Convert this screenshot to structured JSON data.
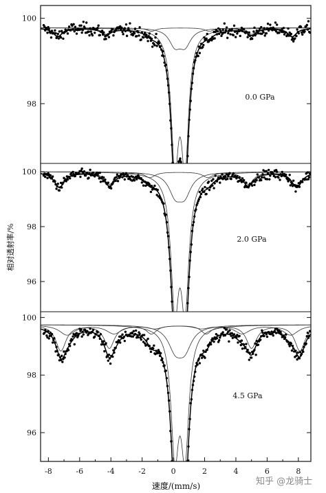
{
  "chart_data": {
    "type": "scatter",
    "xlabel": "速度/(mm/s)",
    "ylabel": "相对透射率/%",
    "xlim": [
      -8.5,
      8.8
    ],
    "x_ticks": [
      "-8",
      "-6",
      "-4",
      "-2",
      "0",
      "2",
      "4",
      "6",
      "8"
    ],
    "panels": [
      {
        "label": "0.0 GPa",
        "ylim": [
          96.6,
          100.3
        ],
        "y_ticks": [
          "100",
          "98"
        ],
        "baseline": 99.78,
        "components": [
          {
            "type": "doublet",
            "center": 0.42,
            "split": 0.65,
            "depth": 3.0,
            "width": 0.28
          },
          {
            "type": "doublet",
            "center": 0.42,
            "split": 0.65,
            "depth": 0.38,
            "width": 0.45
          },
          {
            "type": "sextet",
            "lines": [
              -7.4,
              -4.3,
              -1.4,
              2.3,
              5.0,
              7.6
            ],
            "depths": [
              0.2,
              0.15,
              0.08,
              0.08,
              0.15,
              0.2
            ],
            "width": 0.35
          }
        ]
      },
      {
        "label": "2.0 GPa",
        "ylim": [
          94.9,
          100.3
        ],
        "y_ticks": [
          "100",
          "98",
          "96"
        ],
        "baseline": 100.0,
        "components": [
          {
            "type": "doublet",
            "center": 0.42,
            "split": 0.65,
            "depth": 4.6,
            "width": 0.3
          },
          {
            "type": "doublet",
            "center": 0.42,
            "split": 0.6,
            "depth": 0.75,
            "width": 0.5
          },
          {
            "type": "sextet",
            "lines": [
              -7.3,
              -4.1,
              -1.5,
              2.2,
              4.8,
              7.9
            ],
            "depths": [
              0.55,
              0.45,
              0.2,
              0.2,
              0.45,
              0.55
            ],
            "width": 0.4
          }
        ]
      },
      {
        "label": "4.5 GPa",
        "ylim": [
          95.0,
          100.2
        ],
        "y_ticks": [
          "100",
          "98",
          "96"
        ],
        "baseline": 99.75,
        "components": [
          {
            "type": "doublet",
            "center": 0.42,
            "split": 0.65,
            "depth": 4.2,
            "width": 0.3
          },
          {
            "type": "doublet",
            "center": 0.42,
            "split": 0.6,
            "depth": 0.75,
            "width": 0.55
          },
          {
            "type": "sextet",
            "lines": [
              -7.2,
              -4.1,
              -1.4,
              2.1,
              5.0,
              8.1
            ],
            "depths": [
              0.9,
              0.8,
              0.3,
              0.3,
              0.8,
              0.9
            ],
            "width": 0.4
          },
          {
            "type": "sextet",
            "lines": [
              -6.8,
              -3.8,
              -1.2,
              1.8,
              4.4,
              7.5
            ],
            "depths": [
              0.35,
              0.3,
              0.12,
              0.12,
              0.3,
              0.35
            ],
            "width": 0.6
          }
        ]
      }
    ]
  },
  "watermark": "知乎 @龙骑士"
}
